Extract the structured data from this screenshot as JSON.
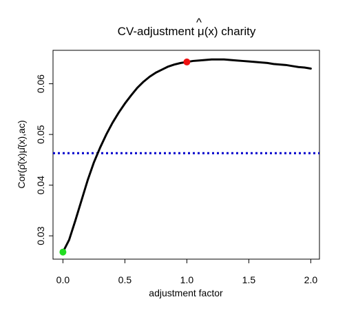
{
  "chart_data": {
    "type": "line",
    "title": "CV-adjustment μ̂(x) charity",
    "title_parts": {
      "prefix": "CV-adjustment ",
      "hat_symbol": "μ",
      "hat_mark": "^",
      "suffix": "(x) charity"
    },
    "xlabel": "adjustment factor",
    "ylabel": "Cor(ρ̂(x)μ̂(x),ac)",
    "xlim": [
      -0.08,
      2.07
    ],
    "ylim": [
      0.0254,
      0.0666
    ],
    "x_ticks": [
      0.0,
      0.5,
      1.0,
      1.5,
      2.0
    ],
    "x_tick_labels": [
      "0.0",
      "0.5",
      "1.0",
      "1.5",
      "2.0"
    ],
    "y_ticks": [
      0.03,
      0.04,
      0.05,
      0.06
    ],
    "y_tick_labels": [
      "0.03",
      "0.04",
      "0.05",
      "0.06"
    ],
    "grid": false,
    "legend": "none",
    "series": [
      {
        "type": "line",
        "color": "#000000",
        "x": [
          0.0,
          0.05,
          0.1,
          0.15,
          0.2,
          0.25,
          0.3,
          0.35,
          0.4,
          0.45,
          0.5,
          0.55,
          0.6,
          0.65,
          0.7,
          0.75,
          0.8,
          0.85,
          0.9,
          0.95,
          1.0,
          1.05,
          1.1,
          1.15,
          1.2,
          1.25,
          1.3,
          1.35,
          1.4,
          1.45,
          1.5,
          1.55,
          1.6,
          1.65,
          1.7,
          1.75,
          1.8,
          1.85,
          1.9,
          1.95,
          2.0
        ],
        "y": [
          0.0268,
          0.0292,
          0.033,
          0.037,
          0.041,
          0.0445,
          0.0474,
          0.05,
          0.0523,
          0.0543,
          0.0561,
          0.0577,
          0.0592,
          0.0604,
          0.0614,
          0.0622,
          0.0628,
          0.0634,
          0.0638,
          0.0641,
          0.0643,
          0.0645,
          0.0646,
          0.0647,
          0.0648,
          0.0648,
          0.0648,
          0.0647,
          0.0646,
          0.0645,
          0.0644,
          0.0643,
          0.0642,
          0.0641,
          0.0639,
          0.0638,
          0.0637,
          0.0635,
          0.0633,
          0.0632,
          0.063
        ]
      }
    ],
    "reference_line": {
      "y": 0.0463,
      "style": "dotted",
      "color": "#0000cc"
    },
    "points": [
      {
        "x": 0.0,
        "y": 0.0268,
        "color": "#22dd22"
      },
      {
        "x": 1.0,
        "y": 0.0643,
        "color": "#ee1111"
      }
    ]
  }
}
